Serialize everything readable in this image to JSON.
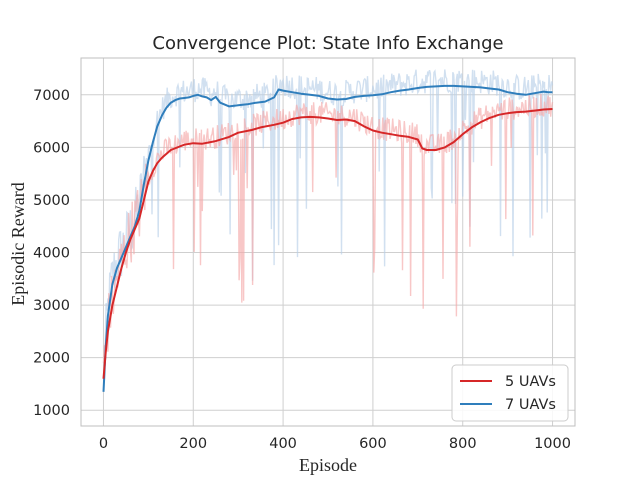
{
  "chart_data": {
    "type": "line",
    "title": "Convergence Plot: State Info Exchange",
    "xlabel": "Episode",
    "ylabel": "Episodic Reward",
    "xlim": [
      -50,
      1050
    ],
    "ylim": [
      700,
      7700
    ],
    "x_ticks": [
      0,
      200,
      400,
      600,
      800,
      1000
    ],
    "y_ticks": [
      1000,
      2000,
      3000,
      4000,
      5000,
      6000,
      7000
    ],
    "x_tick_labels": [
      "0",
      "200",
      "400",
      "600",
      "800",
      "1000"
    ],
    "y_tick_labels": [
      "1000",
      "2000",
      "3000",
      "4000",
      "5000",
      "6000",
      "7000"
    ],
    "grid": true,
    "legend_position": "lower-right",
    "colors": {
      "series_1": "#d62728",
      "series_2": "#2f7ebc",
      "raw_1": "#f4a9a9",
      "raw_2": "#b8d0e8",
      "grid": "#cfcfcf",
      "axes": "#bfbfbf"
    },
    "series": [
      {
        "name": "5 UAVs",
        "color": "#d62728",
        "x": [
          0,
          5,
          10,
          20,
          30,
          40,
          50,
          60,
          70,
          80,
          90,
          100,
          110,
          120,
          130,
          150,
          180,
          200,
          220,
          250,
          280,
          300,
          330,
          350,
          380,
          400,
          420,
          440,
          460,
          480,
          500,
          520,
          540,
          560,
          580,
          600,
          620,
          640,
          660,
          680,
          700,
          710,
          720,
          740,
          760,
          780,
          800,
          820,
          840,
          860,
          880,
          900,
          920,
          940,
          960,
          980,
          1000
        ],
        "y": [
          1600,
          2100,
          2500,
          3000,
          3350,
          3700,
          4000,
          4250,
          4450,
          4650,
          5000,
          5350,
          5550,
          5700,
          5800,
          5950,
          6050,
          6080,
          6070,
          6120,
          6200,
          6280,
          6330,
          6380,
          6430,
          6470,
          6540,
          6570,
          6580,
          6570,
          6550,
          6520,
          6530,
          6500,
          6400,
          6320,
          6280,
          6250,
          6220,
          6200,
          6150,
          5980,
          5950,
          5950,
          6000,
          6100,
          6250,
          6380,
          6480,
          6560,
          6620,
          6650,
          6670,
          6680,
          6700,
          6720,
          6730
        ]
      },
      {
        "name": "7 UAVs",
        "color": "#2f7ebc",
        "x": [
          0,
          5,
          10,
          20,
          30,
          40,
          50,
          60,
          70,
          80,
          90,
          100,
          110,
          120,
          130,
          140,
          150,
          160,
          170,
          180,
          190,
          200,
          210,
          220,
          230,
          240,
          250,
          260,
          280,
          300,
          320,
          340,
          360,
          380,
          390,
          400,
          420,
          440,
          460,
          480,
          500,
          520,
          540,
          560,
          580,
          600,
          620,
          640,
          660,
          680,
          700,
          720,
          740,
          760,
          780,
          800,
          820,
          840,
          860,
          880,
          900,
          920,
          940,
          960,
          980,
          990,
          1000
        ],
        "y": [
          1350,
          2200,
          2800,
          3400,
          3700,
          3900,
          4100,
          4300,
          4500,
          4800,
          5300,
          5750,
          6100,
          6400,
          6600,
          6750,
          6850,
          6900,
          6930,
          6940,
          6950,
          6980,
          7000,
          6970,
          6950,
          6900,
          6960,
          6850,
          6780,
          6800,
          6820,
          6850,
          6870,
          6950,
          7100,
          7080,
          7050,
          7020,
          7000,
          6980,
          6930,
          6910,
          6920,
          6960,
          6980,
          6990,
          7010,
          7050,
          7080,
          7100,
          7130,
          7150,
          7160,
          7170,
          7170,
          7160,
          7150,
          7140,
          7120,
          7100,
          7050,
          7020,
          7000,
          7030,
          7060,
          7050,
          7050
        ]
      }
    ]
  }
}
